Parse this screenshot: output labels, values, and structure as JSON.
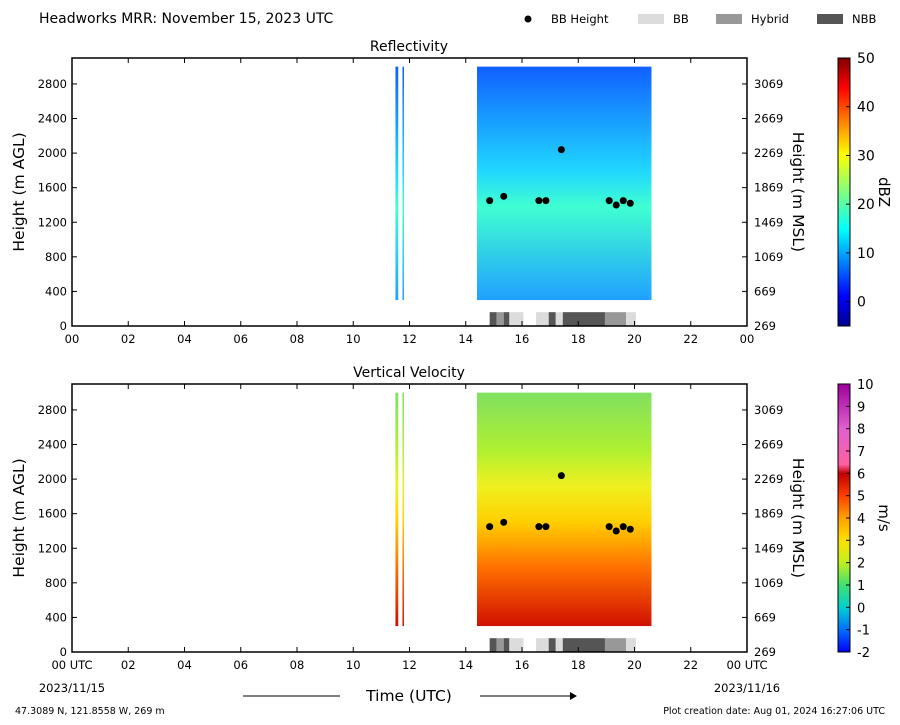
{
  "header": {
    "title": "Headworks MRR:  November 15, 2023 UTC",
    "legend": [
      {
        "label": "BB Height",
        "kind": "dot",
        "color": "#000000"
      },
      {
        "label": "BB",
        "kind": "box",
        "color": "#dcdcdc"
      },
      {
        "label": "Hybrid",
        "kind": "box",
        "color": "#989898"
      },
      {
        "label": "NBB",
        "kind": "box",
        "color": "#555555"
      }
    ]
  },
  "footer": {
    "location": "47.3089 N, 121.8558 W, 269 m",
    "creation": "Plot creation date: Aug 01, 2024 16:27:06 UTC",
    "xlabel": "Time (UTC)",
    "date_start": "2023/11/15",
    "date_end": "2023/11/16"
  },
  "chart_data": [
    {
      "type": "heatmap",
      "title": "Reflectivity",
      "ylabel": "Height (m AGL)",
      "ylabel_right": "Height (m MSL)",
      "colorbar_label": "dBZ",
      "colorbar_ticks": [
        "50",
        "40",
        "30",
        "20",
        "10",
        "0"
      ],
      "colormap": "jet",
      "colorbar_range": [
        -5,
        50
      ],
      "xlim": [
        0,
        24
      ],
      "ylim": [
        0,
        3100
      ],
      "x_ticks": [
        "00",
        "02",
        "04",
        "06",
        "08",
        "10",
        "12",
        "14",
        "16",
        "18",
        "20",
        "22",
        "00"
      ],
      "y_ticks_left": [
        "0",
        "400",
        "800",
        "1200",
        "1600",
        "2000",
        "2400",
        "2800"
      ],
      "y_ticks_right": [
        "269",
        "669",
        "1069",
        "1469",
        "1869",
        "2269",
        "2669",
        "3069"
      ],
      "data_height_range_m": [
        300,
        3000
      ],
      "echo_periods_utc": [
        [
          11.5,
          11.6
        ],
        [
          11.75,
          11.8
        ],
        [
          14.4,
          20.55
        ],
        [
          20.55,
          20.6
        ]
      ],
      "bb_height_points": {
        "x": [
          14.85,
          15.35,
          16.6,
          16.85,
          17.4,
          19.1,
          19.35,
          19.6,
          19.85
        ],
        "y": [
          1450,
          1500,
          1450,
          1450,
          2040,
          1450,
          1400,
          1450,
          1420
        ]
      },
      "bb_type_timeline": [
        {
          "start": 14.85,
          "end": 15.1,
          "type": "NBB"
        },
        {
          "start": 15.1,
          "end": 15.35,
          "type": "Hybrid"
        },
        {
          "start": 15.35,
          "end": 15.55,
          "type": "NBB"
        },
        {
          "start": 15.55,
          "end": 16.05,
          "type": "BB"
        },
        {
          "start": 16.5,
          "end": 16.95,
          "type": "BB"
        },
        {
          "start": 16.95,
          "end": 17.2,
          "type": "NBB"
        },
        {
          "start": 17.2,
          "end": 17.45,
          "type": "BB"
        },
        {
          "start": 17.45,
          "end": 18.95,
          "type": "NBB"
        },
        {
          "start": 18.95,
          "end": 19.7,
          "type": "Hybrid"
        },
        {
          "start": 19.7,
          "end": 20.05,
          "type": "BB"
        }
      ]
    },
    {
      "type": "heatmap",
      "title": "Vertical Velocity",
      "ylabel": "Height (m AGL)",
      "ylabel_right": "Height (m MSL)",
      "colorbar_label": "m/s",
      "colorbar_ticks": [
        "10",
        "9",
        "8",
        "7",
        "6",
        "5",
        "4",
        "3",
        "2",
        "1",
        "0",
        "-1",
        "-2"
      ],
      "colorbar_range": [
        -2,
        10
      ],
      "xlim": [
        0,
        24
      ],
      "ylim": [
        0,
        3100
      ],
      "x_ticks": [
        "00 UTC",
        "02",
        "04",
        "06",
        "08",
        "10",
        "12",
        "14",
        "16",
        "18",
        "20",
        "22",
        "00 UTC"
      ],
      "y_ticks_left": [
        "0",
        "400",
        "800",
        "1200",
        "1600",
        "2000",
        "2400",
        "2800"
      ],
      "y_ticks_right": [
        "269",
        "669",
        "1069",
        "1469",
        "1869",
        "2269",
        "2669",
        "3069"
      ],
      "data_height_range_m": [
        300,
        3000
      ],
      "echo_periods_utc": [
        [
          11.5,
          11.6
        ],
        [
          11.75,
          11.8
        ],
        [
          14.4,
          20.55
        ],
        [
          20.55,
          20.6
        ]
      ],
      "bb_height_points": {
        "x": [
          14.85,
          15.35,
          16.6,
          16.85,
          17.4,
          19.1,
          19.35,
          19.6,
          19.85
        ],
        "y": [
          1450,
          1500,
          1450,
          1450,
          2040,
          1450,
          1400,
          1450,
          1420
        ]
      },
      "bb_type_timeline": [
        {
          "start": 14.85,
          "end": 15.1,
          "type": "NBB"
        },
        {
          "start": 15.1,
          "end": 15.35,
          "type": "Hybrid"
        },
        {
          "start": 15.35,
          "end": 15.55,
          "type": "NBB"
        },
        {
          "start": 15.55,
          "end": 16.05,
          "type": "BB"
        },
        {
          "start": 16.5,
          "end": 16.95,
          "type": "BB"
        },
        {
          "start": 16.95,
          "end": 17.2,
          "type": "NBB"
        },
        {
          "start": 17.2,
          "end": 17.45,
          "type": "BB"
        },
        {
          "start": 17.45,
          "end": 18.95,
          "type": "NBB"
        },
        {
          "start": 18.95,
          "end": 19.7,
          "type": "Hybrid"
        },
        {
          "start": 19.7,
          "end": 20.05,
          "type": "BB"
        }
      ]
    }
  ]
}
